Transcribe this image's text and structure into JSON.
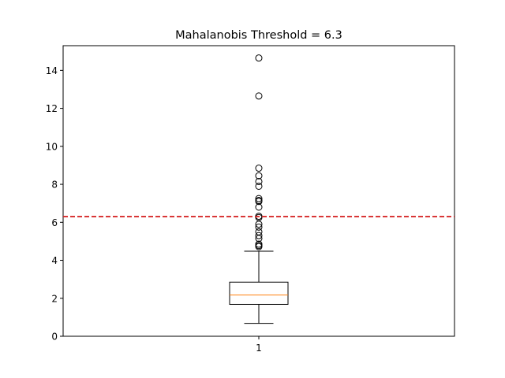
{
  "chart_data": {
    "type": "box",
    "title": "Mahalanobis Threshold = 6.3",
    "xlabel": "",
    "ylabel": "",
    "categories": [
      "1"
    ],
    "ylim": [
      0,
      15.3
    ],
    "yticks": [
      0,
      2,
      4,
      6,
      8,
      10,
      12,
      14
    ],
    "grid": false,
    "box": {
      "whisker_low": 0.68,
      "q1": 1.68,
      "median": 2.17,
      "q3": 2.85,
      "whisker_high": 4.48
    },
    "outliers": [
      4.72,
      4.78,
      4.85,
      5.15,
      5.3,
      5.5,
      5.75,
      5.9,
      6.25,
      6.32,
      6.8,
      7.1,
      7.15,
      7.25,
      7.9,
      8.15,
      8.45,
      8.85,
      12.65,
      14.65
    ],
    "threshold": {
      "value": 6.3,
      "color": "#d62728",
      "style": "dashed"
    },
    "colors": {
      "median": "#ff7f0e",
      "box": "#000000"
    }
  }
}
